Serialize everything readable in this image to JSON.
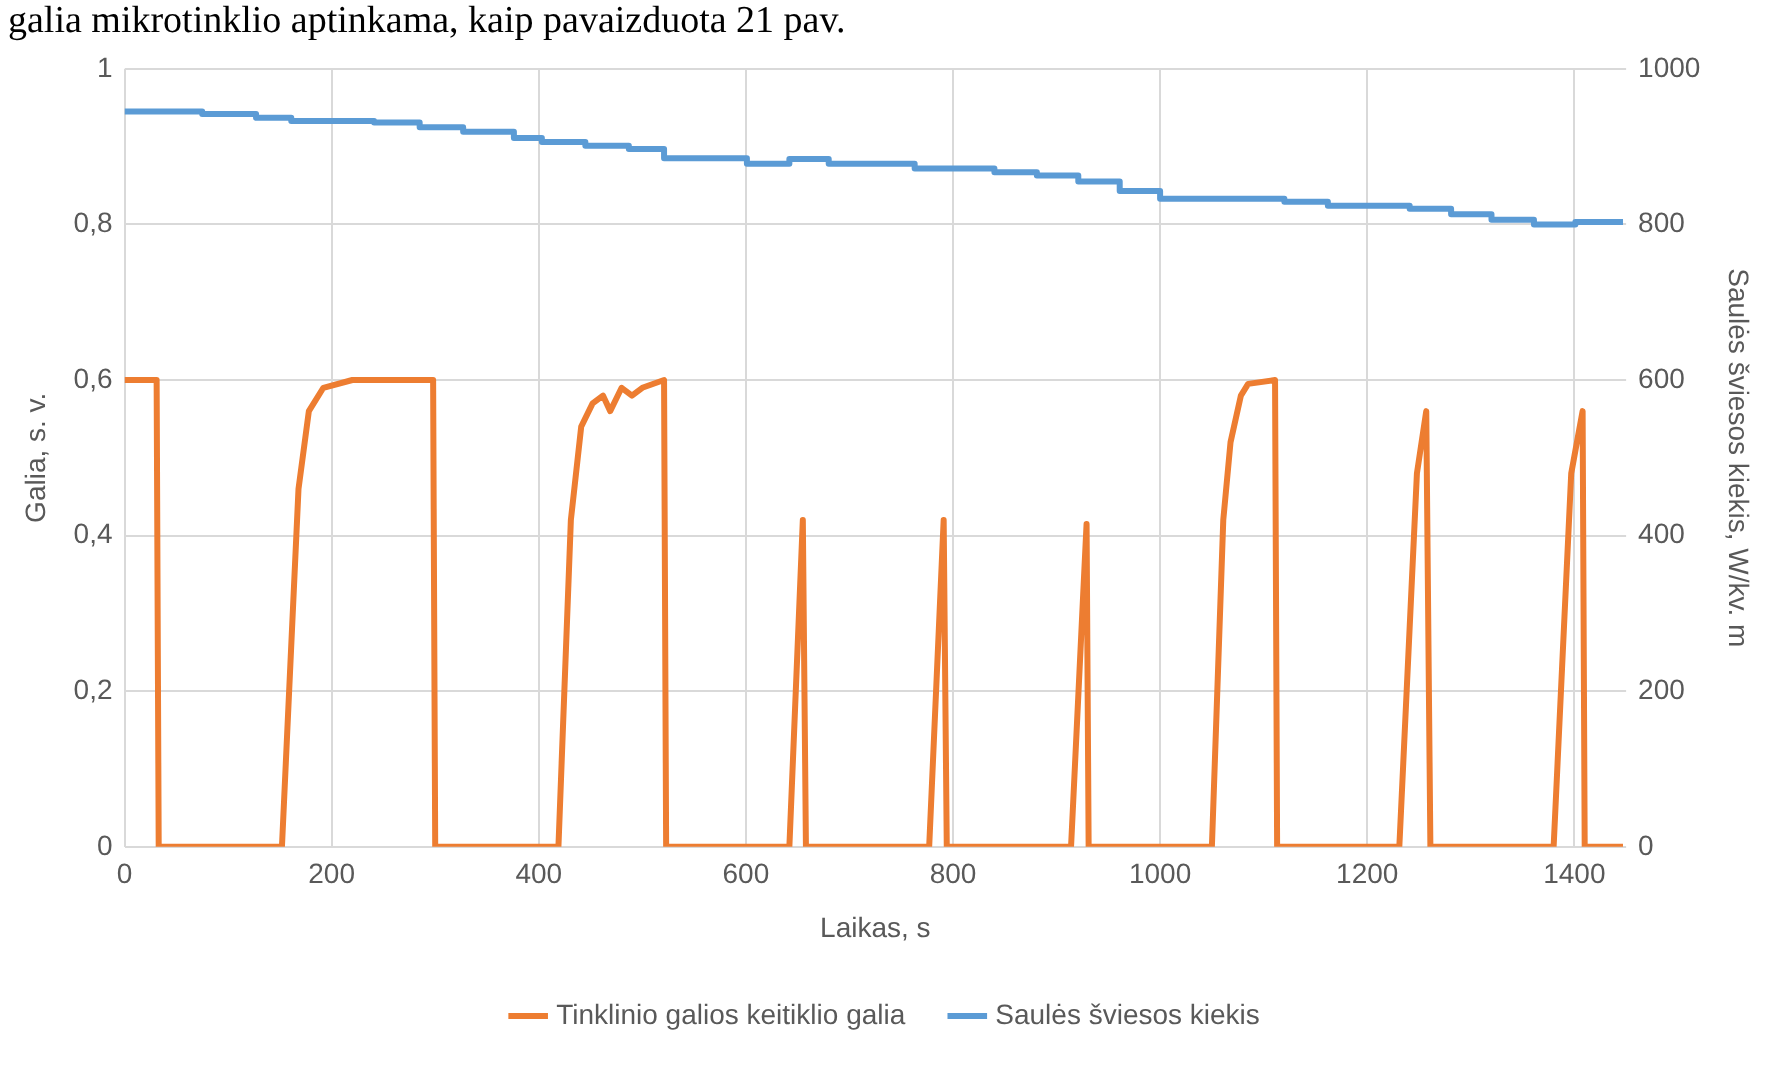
{
  "chart_data": {
    "type": "line",
    "xlabel": "Laikas, s",
    "ylabel": "Galia, s. v.",
    "y2label": "Saulės šviesos kiekis, W/kv. m",
    "annotations": [
      "galia mikrotinklio aptinkama, kaip pavaizduota 21 pav."
    ],
    "xlim": [
      0,
      1450
    ],
    "xticks": [
      0,
      200,
      400,
      600,
      800,
      1000,
      1200,
      1400
    ],
    "ylim": [
      0,
      1
    ],
    "yticks": [
      0,
      {
        "value": 0.2,
        "label": "0,2"
      },
      {
        "value": 0.4,
        "label": "0,4"
      },
      {
        "value": 0.6,
        "label": "0,6"
      },
      {
        "value": 0.8,
        "label": "0,8"
      },
      1
    ],
    "y2lim": [
      0,
      1000
    ],
    "y2ticks": [
      0,
      200,
      400,
      600,
      800,
      1000
    ],
    "grid": true,
    "legend": "bottom",
    "marker": "none",
    "line_style": "solid",
    "series": [
      {
        "name": "Tinklinio galios keitiklio galia",
        "color": "#ed7d31",
        "axis": "y",
        "x": [
          0,
          31,
          33,
          152,
          168,
          178,
          192,
          220,
          260,
          298,
          300,
          419,
          431,
          441,
          452,
          462,
          469,
          480,
          490,
          500,
          521,
          523,
          642,
          655,
          658,
          777,
          791,
          794,
          914,
          929,
          931,
          1050,
          1061,
          1068,
          1078,
          1085,
          1111,
          1113,
          1231,
          1248,
          1257,
          1261,
          1380,
          1397,
          1408,
          1410,
          1447
        ],
        "values": [
          0.6,
          0.6,
          0,
          0,
          0.46,
          0.56,
          0.59,
          0.6,
          0.6,
          0.6,
          0,
          0,
          0.42,
          0.54,
          0.57,
          0.58,
          0.56,
          0.59,
          0.58,
          0.59,
          0.6,
          0,
          0,
          0.42,
          0,
          0,
          0.42,
          0,
          0,
          0.415,
          0,
          0,
          0.42,
          0.52,
          0.58,
          0.595,
          0.6,
          0,
          0,
          0.48,
          0.56,
          0,
          0,
          0.48,
          0.56,
          0,
          0
        ]
      },
      {
        "name": "Saulės šviesos kiekis",
        "color": "#5b9bd5",
        "type": "step",
        "axis": "y2",
        "x": [
          0,
          75,
          127,
          161,
          241,
          285,
          327,
          376,
          403,
          445,
          487,
          521,
          601,
          642,
          680,
          763,
          840,
          881,
          921,
          961,
          1000,
          1120,
          1162,
          1241,
          1281,
          1320,
          1361,
          1401,
          1447
        ],
        "values": [
          945,
          942,
          937,
          933,
          931,
          925,
          919,
          911,
          906,
          901,
          897,
          885,
          878,
          884,
          878,
          872,
          867,
          863,
          855,
          843,
          833,
          829,
          824,
          820,
          813,
          806,
          800,
          803,
          803
        ]
      }
    ]
  }
}
